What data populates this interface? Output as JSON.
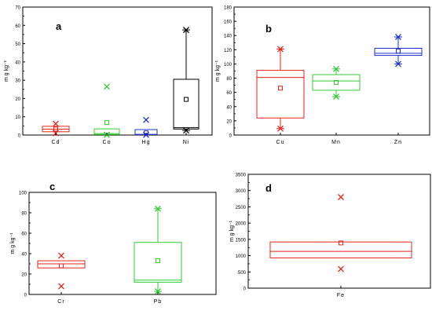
{
  "chart_data": [
    {
      "type": "boxplot",
      "panel_label": "a",
      "ylabel": "m g kg⁻¹",
      "ylim": [
        0,
        70
      ],
      "yticks": [
        0,
        10,
        20,
        30,
        40,
        50,
        60,
        70
      ],
      "categories": [
        "Cd",
        "Co",
        "Hg",
        "Ni"
      ],
      "boxes": [
        {
          "name": "Cd",
          "color": "#e8231a",
          "q1": 1.8,
          "median": 3.2,
          "q3": 4.8,
          "whisker_low": 1.8,
          "whisker_high": 4.8,
          "mean": 3.3,
          "outliers": [
            6.2,
            1.0
          ]
        },
        {
          "name": "Co",
          "color": "#33cc33",
          "q1": 0.3,
          "median": 0.8,
          "q3": 3.4,
          "whisker_low": 0.3,
          "whisker_high": 3.4,
          "mean": 6.8,
          "outliers": [
            26.5,
            0.1
          ]
        },
        {
          "name": "Hg",
          "color": "#1f2fd1",
          "q1": 0.2,
          "median": 0.4,
          "q3": 3.0,
          "whisker_low": 0.2,
          "whisker_high": 3.0,
          "mean": 1.2,
          "outliers": [
            8.3,
            0.1
          ]
        },
        {
          "name": "Ni",
          "color": "#000000",
          "q1": 3.3,
          "median": 4.0,
          "q3": 30.5,
          "whisker_low": 2.5,
          "whisker_high": 57.5,
          "mean": 19.5,
          "outliers": [
            57.5,
            2.5
          ]
        }
      ]
    },
    {
      "type": "boxplot",
      "panel_label": "b",
      "ylabel": "m g kg⁻¹",
      "ylim": [
        0,
        180
      ],
      "yticks": [
        0,
        20,
        40,
        60,
        80,
        100,
        120,
        140,
        160,
        180
      ],
      "categories": [
        "Cu",
        "Mn",
        "Zn"
      ],
      "boxes": [
        {
          "name": "Cu",
          "color": "#e8231a",
          "q1": 24,
          "median": 81,
          "q3": 91,
          "whisker_low": 9,
          "whisker_high": 121,
          "mean": 66,
          "outliers": [
            121,
            9
          ]
        },
        {
          "name": "Mn",
          "color": "#33cc33",
          "q1": 63,
          "median": 76,
          "q3": 85,
          "whisker_low": 54,
          "whisker_high": 93,
          "mean": 74,
          "outliers": [
            93,
            54
          ]
        },
        {
          "name": "Zn",
          "color": "#1f2fd1",
          "q1": 112,
          "median": 115,
          "q3": 122,
          "whisker_low": 100,
          "whisker_high": 138,
          "mean": 118,
          "outliers": [
            138,
            100
          ]
        }
      ]
    },
    {
      "type": "boxplot",
      "panel_label": "c",
      "ylabel": "m g kg⁻¹",
      "ylim": [
        0,
        100
      ],
      "yticks": [
        0,
        20,
        40,
        60,
        80,
        100
      ],
      "categories": [
        "Cr",
        "Pb"
      ],
      "boxes": [
        {
          "name": "Cr",
          "color": "#e8231a",
          "q1": 26,
          "median": 30,
          "q3": 33,
          "whisker_low": 26,
          "whisker_high": 33,
          "mean": 28,
          "outliers": [
            38,
            8
          ]
        },
        {
          "name": "Pb",
          "color": "#33cc33",
          "q1": 12,
          "median": 14,
          "q3": 51,
          "whisker_low": 3,
          "whisker_high": 84,
          "mean": 33,
          "outliers": [
            84,
            3
          ]
        }
      ]
    },
    {
      "type": "boxplot",
      "panel_label": "d",
      "ylabel": "m g kg⁻¹",
      "ylim": [
        0,
        3500
      ],
      "yticks": [
        0,
        500,
        1000,
        1500,
        2000,
        2500,
        3000,
        3500
      ],
      "categories": [
        "Fe"
      ],
      "boxes": [
        {
          "name": "Fe",
          "color": "#e8231a",
          "q1": 930,
          "median": 1130,
          "q3": 1420,
          "whisker_low": 930,
          "whisker_high": 1420,
          "mean": 1390,
          "outliers": [
            2800,
            590
          ]
        }
      ]
    }
  ]
}
